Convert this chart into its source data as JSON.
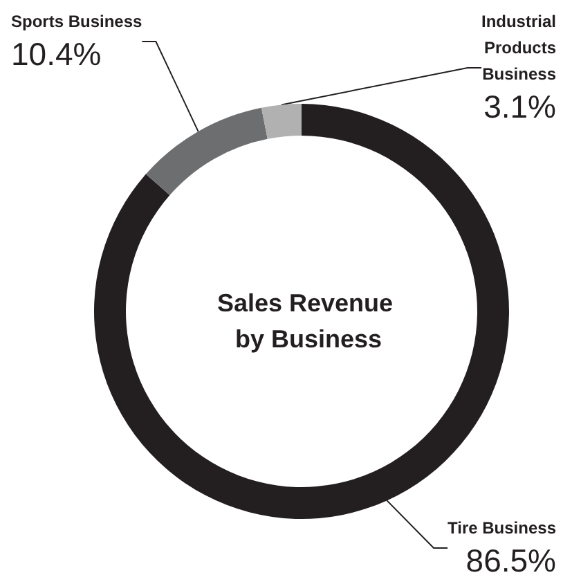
{
  "chart_data": {
    "type": "donut",
    "title": "Sales Revenue by Business",
    "categories": [
      "Tire Business",
      "Sports Business",
      "Industrial Products Business"
    ],
    "values": [
      86.5,
      10.4,
      3.1
    ],
    "colors": [
      "#231f20",
      "#6d6e70",
      "#b1b1b1"
    ],
    "value_labels": [
      "86.5%",
      "10.4%",
      "3.1%"
    ],
    "legend": false
  }
}
